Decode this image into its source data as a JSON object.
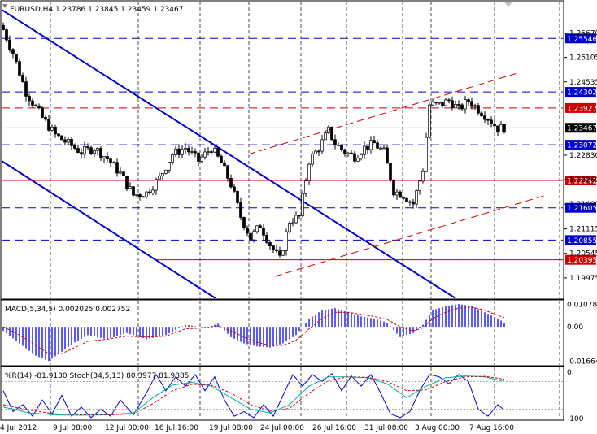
{
  "header": {
    "symbol": "EURUSD,H4",
    "ohlc": "1.23786 1.23845 1.23459 1.23467"
  },
  "macd_label": "MACD(5,34,5) 0.002025 0.002752",
  "osc_label": "%R(14) -81.9130  Stoch(34,5,13) 80.3977 81.9885",
  "colors": {
    "background": "#ffffff",
    "candle": "#000000",
    "blue_line": "#0000cc",
    "red_line": "#cc0000",
    "macd_hist": "#0000ff",
    "signal": "#cc0000",
    "wpr": "#0000cc",
    "stoch_main": "#00aaaa",
    "stoch_signal": "#cc0000",
    "grid": "#000000"
  },
  "chart_data": [
    {
      "type": "candlestick",
      "title": "EURUSD,H4",
      "ylim": [
        1.195,
        1.261
      ],
      "y_ticks": [
        "1.25670",
        "1.25105",
        "1.24535",
        "1.22830",
        "1.22260",
        "1.21690",
        "1.21115",
        "1.20545",
        "1.19975"
      ],
      "x_ticks": [
        "4 Jul 2012",
        "9 Jul 08:00",
        "12 Jul 00:00",
        "16 Jul 16:00",
        "19 Jul 08:00",
        "24 Jul 00:00",
        "26 Jul 16:00",
        "31 Jul 08:00",
        "3 Aug 00:00",
        "7 Aug 16:00"
      ],
      "levels": [
        {
          "value": 1.25546,
          "label": "1.25546",
          "style": "blue-dashed"
        },
        {
          "value": 1.24302,
          "label": "1.24302",
          "style": "blue-dashed"
        },
        {
          "value": 1.23927,
          "label": "1.23927",
          "style": "red-dashed"
        },
        {
          "value": 1.23467,
          "label": "1.23467",
          "style": "current"
        },
        {
          "value": 1.23072,
          "label": "1.23072",
          "style": "blue-dashed"
        },
        {
          "value": 1.22242,
          "label": "1.22242",
          "style": "red-solid"
        },
        {
          "value": 1.21605,
          "label": "1.21605",
          "style": "blue-dashed"
        },
        {
          "value": 1.20855,
          "label": "1.20855",
          "style": "blue-dashed"
        },
        {
          "value": 1.20395,
          "label": "1.20395",
          "style": "red-solid"
        }
      ],
      "close_anchors": [
        [
          0,
          1.2575
        ],
        [
          3,
          1.252
        ],
        [
          7,
          1.243
        ],
        [
          12,
          1.237
        ],
        [
          16,
          1.233
        ],
        [
          20,
          1.231
        ],
        [
          24,
          1.229
        ],
        [
          28,
          1.23
        ],
        [
          32,
          1.2275
        ],
        [
          36,
          1.224
        ],
        [
          40,
          1.219
        ],
        [
          44,
          1.2195
        ],
        [
          48,
          1.223
        ],
        [
          52,
          1.2285
        ],
        [
          56,
          1.23
        ],
        [
          60,
          1.227
        ],
        [
          64,
          1.23
        ],
        [
          67,
          1.2265
        ],
        [
          70,
          1.2215
        ],
        [
          73,
          1.214
        ],
        [
          76,
          1.209
        ],
        [
          79,
          1.212
        ],
        [
          82,
          1.2075
        ],
        [
          85,
          1.204
        ],
        [
          88,
          1.213
        ],
        [
          91,
          1.214
        ],
        [
          94,
          1.227
        ],
        [
          97,
          1.23
        ],
        [
          100,
          1.234
        ],
        [
          102,
          1.231
        ],
        [
          105,
          1.229
        ],
        [
          108,
          1.228
        ],
        [
          111,
          1.23
        ],
        [
          114,
          1.231
        ],
        [
          117,
          1.229
        ],
        [
          120,
          1.22
        ],
        [
          123,
          1.219
        ],
        [
          126,
          1.217
        ],
        [
          129,
          1.225
        ],
        [
          131,
          1.24
        ],
        [
          134,
          1.24
        ],
        [
          137,
          1.241
        ],
        [
          140,
          1.239
        ],
        [
          143,
          1.241
        ],
        [
          146,
          1.239
        ],
        [
          149,
          1.237
        ],
        [
          152,
          1.2345
        ],
        [
          154,
          1.2347
        ]
      ]
    },
    {
      "type": "histogram",
      "title": "MACD(5,34,5) 0.002025 0.002752",
      "ylim": [
        -0.018,
        0.0118
      ],
      "y_ticks": [
        "0.010786",
        "0.00",
        "-0.01664"
      ],
      "anchors": [
        [
          0,
          -0.002
        ],
        [
          5,
          -0.008
        ],
        [
          10,
          -0.014
        ],
        [
          14,
          -0.0165
        ],
        [
          18,
          -0.012
        ],
        [
          22,
          -0.0075
        ],
        [
          26,
          -0.004
        ],
        [
          32,
          -0.006
        ],
        [
          38,
          -0.003
        ],
        [
          44,
          -0.006
        ],
        [
          50,
          -0.004
        ],
        [
          56,
          0.001
        ],
        [
          62,
          -0.0005
        ],
        [
          66,
          0.0015
        ],
        [
          70,
          -0.005
        ],
        [
          74,
          -0.008
        ],
        [
          78,
          -0.0095
        ],
        [
          82,
          -0.01
        ],
        [
          86,
          -0.008
        ],
        [
          90,
          -0.004
        ],
        [
          94,
          0.004
        ],
        [
          98,
          0.008
        ],
        [
          102,
          0.009
        ],
        [
          106,
          0.007
        ],
        [
          110,
          0.005
        ],
        [
          114,
          0.004
        ],
        [
          118,
          0.002
        ],
        [
          122,
          -0.005
        ],
        [
          126,
          -0.003
        ],
        [
          129,
          0.001
        ],
        [
          132,
          0.008
        ],
        [
          136,
          0.01
        ],
        [
          140,
          0.011
        ],
        [
          144,
          0.01
        ],
        [
          148,
          0.007
        ],
        [
          152,
          0.004
        ],
        [
          154,
          0.002
        ]
      ],
      "signal_anchors": [
        [
          0,
          0.0
        ],
        [
          5,
          -0.004
        ],
        [
          10,
          -0.009
        ],
        [
          14,
          -0.013
        ],
        [
          18,
          -0.013
        ],
        [
          22,
          -0.01
        ],
        [
          26,
          -0.007
        ],
        [
          32,
          -0.006
        ],
        [
          38,
          -0.0045
        ],
        [
          44,
          -0.005
        ],
        [
          50,
          -0.0045
        ],
        [
          56,
          -0.001
        ],
        [
          62,
          -0.0005
        ],
        [
          66,
          0.0005
        ],
        [
          70,
          -0.002
        ],
        [
          74,
          -0.005
        ],
        [
          78,
          -0.0075
        ],
        [
          82,
          -0.009
        ],
        [
          86,
          -0.009
        ],
        [
          90,
          -0.0065
        ],
        [
          94,
          -0.001
        ],
        [
          98,
          0.004
        ],
        [
          102,
          0.007
        ],
        [
          106,
          0.007
        ],
        [
          110,
          0.006
        ],
        [
          114,
          0.005
        ],
        [
          118,
          0.0035
        ],
        [
          122,
          0.0
        ],
        [
          126,
          -0.002
        ],
        [
          129,
          -0.0005
        ],
        [
          132,
          0.004
        ],
        [
          136,
          0.007
        ],
        [
          140,
          0.009
        ],
        [
          144,
          0.0095
        ],
        [
          148,
          0.008
        ],
        [
          152,
          0.0055
        ],
        [
          154,
          0.0045
        ]
      ]
    },
    {
      "type": "line",
      "title": "%R(14) -81.9130  Stoch(34,5,13) 80.3977 81.9885",
      "ylim": [
        -100,
        0
      ],
      "y_ticks": [
        "0",
        "-100"
      ],
      "series": [
        {
          "name": "%R(14)",
          "anchors": [
            [
              0,
              -40
            ],
            [
              3,
              -85
            ],
            [
              6,
              -70
            ],
            [
              9,
              -95
            ],
            [
              12,
              -60
            ],
            [
              15,
              -90
            ],
            [
              18,
              -50
            ],
            [
              21,
              -95
            ],
            [
              24,
              -75
            ],
            [
              27,
              -98
            ],
            [
              30,
              -80
            ],
            [
              33,
              -95
            ],
            [
              36,
              -60
            ],
            [
              40,
              -92
            ],
            [
              44,
              -45
            ],
            [
              47,
              -5
            ],
            [
              50,
              -40
            ],
            [
              53,
              -10
            ],
            [
              56,
              -30
            ],
            [
              59,
              -5
            ],
            [
              62,
              -40
            ],
            [
              65,
              -10
            ],
            [
              68,
              -60
            ],
            [
              71,
              -95
            ],
            [
              74,
              -85
            ],
            [
              77,
              -98
            ],
            [
              80,
              -70
            ],
            [
              83,
              -95
            ],
            [
              86,
              -50
            ],
            [
              89,
              -5
            ],
            [
              92,
              -30
            ],
            [
              95,
              -5
            ],
            [
              98,
              -20
            ],
            [
              101,
              -3
            ],
            [
              104,
              -40
            ],
            [
              107,
              -8
            ],
            [
              110,
              -30
            ],
            [
              113,
              -5
            ],
            [
              116,
              -45
            ],
            [
              119,
              -90
            ],
            [
              122,
              -98
            ],
            [
              125,
              -85
            ],
            [
              128,
              -40
            ],
            [
              131,
              -5
            ],
            [
              134,
              -10
            ],
            [
              137,
              -25
            ],
            [
              140,
              -5
            ],
            [
              143,
              -20
            ],
            [
              146,
              -80
            ],
            [
              149,
              -95
            ],
            [
              152,
              -70
            ],
            [
              154,
              -82
            ]
          ]
        },
        {
          "name": "Stoch main",
          "anchors": [
            [
              0,
              -75
            ],
            [
              8,
              -88
            ],
            [
              16,
              -92
            ],
            [
              24,
              -93
            ],
            [
              32,
              -92
            ],
            [
              40,
              -88
            ],
            [
              46,
              -55
            ],
            [
              52,
              -28
            ],
            [
              58,
              -22
            ],
            [
              64,
              -30
            ],
            [
              70,
              -55
            ],
            [
              76,
              -80
            ],
            [
              82,
              -88
            ],
            [
              88,
              -70
            ],
            [
              94,
              -30
            ],
            [
              100,
              -10
            ],
            [
              106,
              -10
            ],
            [
              112,
              -12
            ],
            [
              118,
              -25
            ],
            [
              124,
              -55
            ],
            [
              130,
              -30
            ],
            [
              136,
              -12
            ],
            [
              142,
              -8
            ],
            [
              148,
              -10
            ],
            [
              154,
              -20
            ]
          ]
        },
        {
          "name": "Stoch signal",
          "anchors": [
            [
              0,
              -70
            ],
            [
              8,
              -82
            ],
            [
              16,
              -90
            ],
            [
              24,
              -92
            ],
            [
              32,
              -92
            ],
            [
              40,
              -90
            ],
            [
              46,
              -68
            ],
            [
              52,
              -40
            ],
            [
              58,
              -26
            ],
            [
              64,
              -28
            ],
            [
              70,
              -45
            ],
            [
              76,
              -70
            ],
            [
              82,
              -84
            ],
            [
              88,
              -78
            ],
            [
              94,
              -45
            ],
            [
              100,
              -18
            ],
            [
              106,
              -10
            ],
            [
              112,
              -11
            ],
            [
              118,
              -20
            ],
            [
              124,
              -40
            ],
            [
              130,
              -38
            ],
            [
              136,
              -20
            ],
            [
              142,
              -10
            ],
            [
              148,
              -9
            ],
            [
              154,
              -15
            ]
          ]
        }
      ]
    }
  ]
}
